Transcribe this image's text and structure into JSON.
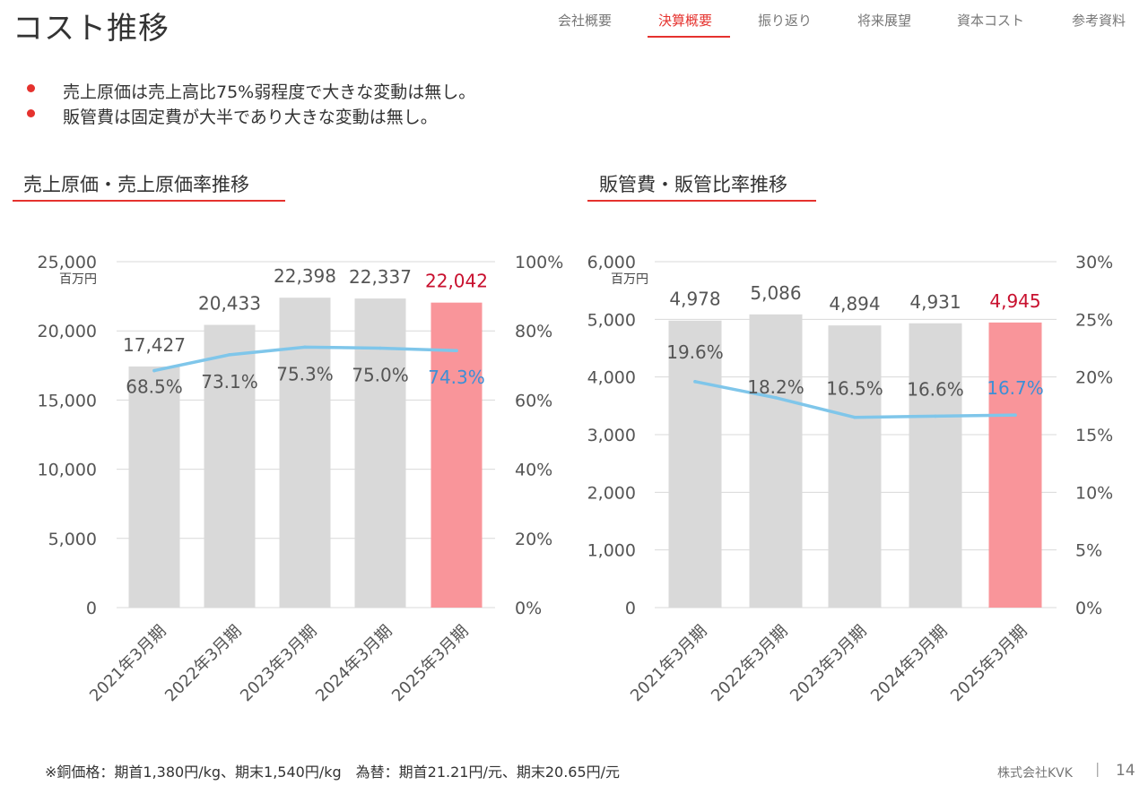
{
  "title": "コスト推移",
  "nav": {
    "items": [
      {
        "label": "会社概要"
      },
      {
        "label": "決算概要",
        "active": true
      },
      {
        "label": "振り返り"
      },
      {
        "label": "将来展望"
      },
      {
        "label": "資本コスト"
      },
      {
        "label": "参考資料"
      }
    ]
  },
  "bullets": [
    "売上原価は売上高比75%弱程度で大きな変動は無し。",
    "販管費は固定費が大半であり大きな変動は無し。"
  ],
  "sections": {
    "left_title": "売上原価・売上原価率推移",
    "right_title": "販管費・販管比率推移"
  },
  "colors": {
    "accent": "#e5322e",
    "bar": "#d9d9d9",
    "bar_highlight": "#f9959a",
    "line": "#7fc6ea",
    "label_highlight": "#c8102e",
    "pct_highlight": "#3d8fd6"
  },
  "chart_data": [
    {
      "type": "bar",
      "title": "売上原価・売上原価率推移",
      "unit_label": "百万円",
      "categories": [
        "2021年3月期",
        "2022年3月期",
        "2023年3月期",
        "2024年3月期",
        "2025年3月期"
      ],
      "series": [
        {
          "name": "売上原価",
          "type": "bar",
          "values": [
            17427,
            20433,
            22398,
            22337,
            22042
          ],
          "labels": [
            "17,427",
            "20,433",
            "22,398",
            "22,337",
            "22,042"
          ]
        },
        {
          "name": "売上原価率",
          "type": "line",
          "axis": "right",
          "values": [
            68.5,
            73.1,
            75.3,
            75.0,
            74.3
          ],
          "labels": [
            "68.5%",
            "73.1%",
            "75.3%",
            "75.0%",
            "74.3%"
          ]
        }
      ],
      "ylim": [
        0,
        25000
      ],
      "yticks": [
        "0",
        "5,000",
        "10,000",
        "15,000",
        "20,000",
        "25,000"
      ],
      "y2lim": [
        0,
        100
      ],
      "y2ticks": [
        "0%",
        "20%",
        "40%",
        "60%",
        "80%",
        "100%"
      ],
      "highlight_index": 4
    },
    {
      "type": "bar",
      "title": "販管費・販管比率推移",
      "unit_label": "百万円",
      "categories": [
        "2021年3月期",
        "2022年3月期",
        "2023年3月期",
        "2024年3月期",
        "2025年3月期"
      ],
      "series": [
        {
          "name": "販管費",
          "type": "bar",
          "values": [
            4978,
            5086,
            4894,
            4931,
            4945
          ],
          "labels": [
            "4,978",
            "5,086",
            "4,894",
            "4,931",
            "4,945"
          ]
        },
        {
          "name": "販管比率",
          "type": "line",
          "axis": "right",
          "values": [
            19.6,
            18.2,
            16.5,
            16.6,
            16.7
          ],
          "labels": [
            "19.6%",
            "18.2%",
            "16.5%",
            "16.6%",
            "16.7%"
          ]
        }
      ],
      "ylim": [
        0,
        6000
      ],
      "yticks": [
        "0",
        "1,000",
        "2,000",
        "3,000",
        "4,000",
        "5,000",
        "6,000"
      ],
      "y2lim": [
        0,
        30
      ],
      "y2ticks": [
        "0%",
        "5%",
        "10%",
        "15%",
        "20%",
        "25%",
        "30%"
      ],
      "highlight_index": 4
    }
  ],
  "footnote": "※銅価格：期首1,380円/kg、期末1,540円/kg　為替：期首21.21円/元、期末20.65円/元",
  "footer": {
    "company": "株式会社KVK",
    "separator": "|",
    "page": "14"
  }
}
